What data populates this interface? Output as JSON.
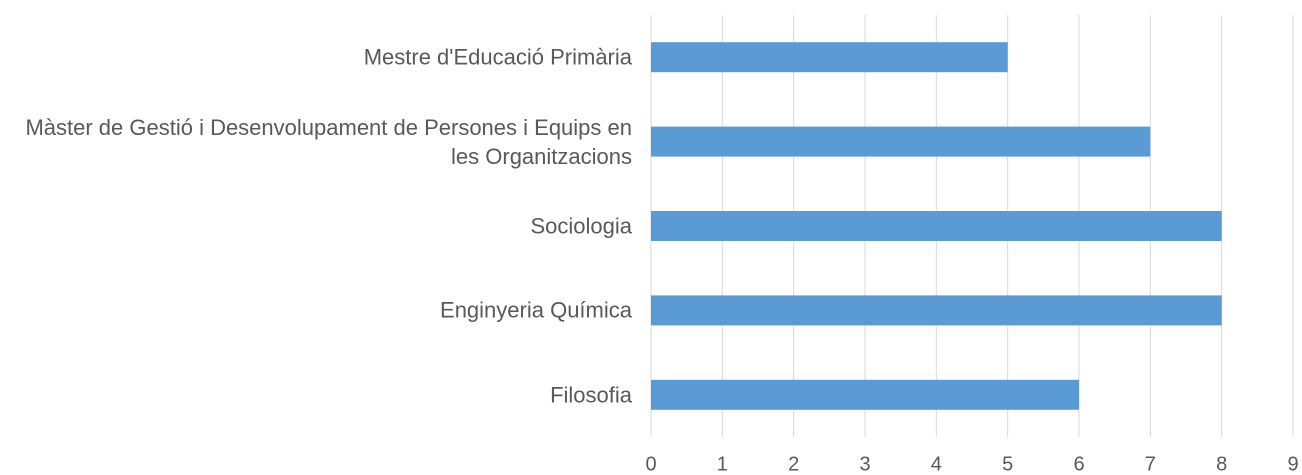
{
  "chart_data": {
    "type": "bar",
    "orientation": "horizontal",
    "categories": [
      "Mestre d'Educació Primària",
      "Màster de Gestió i Desenvolupament de Persones i Equips en les Organitzacions",
      "Sociologia",
      "Enginyeria Química",
      "Filosofia"
    ],
    "values": [
      5,
      7,
      8,
      8,
      6
    ],
    "color": "#5b9bd5",
    "xlim": [
      0,
      9
    ],
    "xticks": [
      0,
      1,
      2,
      3,
      4,
      5,
      6,
      7,
      8,
      9
    ],
    "grid": true
  }
}
